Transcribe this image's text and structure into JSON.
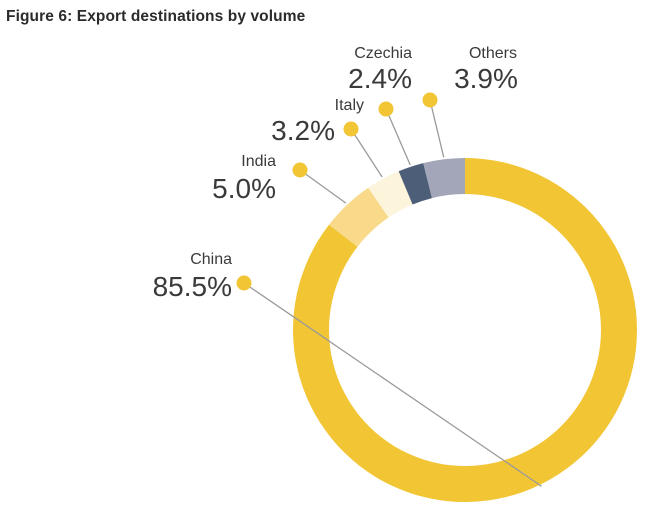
{
  "figure": {
    "title": "Figure 6: Export destinations by volume"
  },
  "chart_data": {
    "type": "pie",
    "variant": "donut",
    "title": "Figure 6: Export destinations by volume",
    "unit": "%",
    "slices": [
      {
        "name": "China",
        "value": 85.5,
        "label": "85.5%",
        "color": "#F2C535"
      },
      {
        "name": "India",
        "value": 5.0,
        "label": "5.0%",
        "color": "#F8DA8A"
      },
      {
        "name": "Italy",
        "value": 3.2,
        "label": "3.2%",
        "color": "#FDF4DC"
      },
      {
        "name": "Czechia",
        "value": 2.4,
        "label": "2.4%",
        "color": "#4D5F78"
      },
      {
        "name": "Others",
        "value": 3.9,
        "label": "3.9%",
        "color": "#A3A6B9"
      }
    ],
    "marker_color": "#F2C535",
    "leader_color": "#9a9a9a"
  }
}
